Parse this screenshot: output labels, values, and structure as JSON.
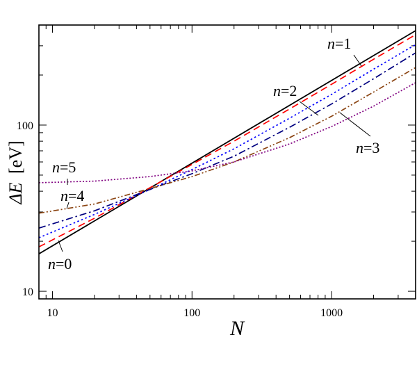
{
  "chart_data": {
    "type": "line",
    "xscale": "log",
    "yscale": "log",
    "xlim": [
      8,
      4000
    ],
    "ylim": [
      9,
      400
    ],
    "x_ticks": [
      10,
      100,
      1000
    ],
    "x_tick_labels": [
      "10",
      "100",
      "1000"
    ],
    "y_ticks": [
      10,
      100
    ],
    "y_tick_labels": [
      "10",
      "100"
    ],
    "xlabel": "N",
    "ylabel_symbol": "ΔE",
    "ylabel_unit": "[eV]",
    "grid": false,
    "series": [
      {
        "name": "n=0",
        "color": "#000000",
        "dash": "solid",
        "x": [
          8,
          4000
        ],
        "y": [
          16.8,
          370
        ]
      },
      {
        "name": "n=1",
        "color": "#ff0000",
        "dash": "dash",
        "x": [
          8,
          20,
          50,
          100,
          200,
          500,
          1000,
          2000,
          4000
        ],
        "y": [
          18.5,
          27.5,
          42,
          58,
          80,
          125,
          176,
          249,
          350
        ]
      },
      {
        "name": "n=2",
        "color": "#0000ff",
        "dash": "dot",
        "x": [
          8,
          20,
          50,
          100,
          200,
          500,
          1000,
          2000,
          4000
        ],
        "y": [
          21,
          29,
          41,
          54,
          72,
          110,
          153,
          217,
          305
        ]
      },
      {
        "name": "n=3",
        "color": "#000080",
        "dash": "dashdot",
        "x": [
          8,
          20,
          50,
          100,
          200,
          500,
          1000,
          2000,
          4000
        ],
        "y": [
          24,
          30.5,
          41,
          51,
          65,
          97,
          134,
          190,
          272
        ]
      },
      {
        "name": "n=4",
        "color": "#8b4513",
        "dash": "dashdotdot",
        "x": [
          8,
          20,
          50,
          100,
          200,
          500,
          1000,
          2000,
          4000
        ],
        "y": [
          29.5,
          33.5,
          41.5,
          49,
          60,
          84,
          113,
          158,
          222
        ]
      },
      {
        "name": "n=5",
        "color": "#800080",
        "dash": "shortdot",
        "x": [
          8,
          20,
          50,
          100,
          200,
          500,
          1000,
          2000,
          4000
        ],
        "y": [
          45,
          46,
          49,
          53,
          60,
          77,
          98,
          130,
          180
        ]
      }
    ],
    "annotations": [
      {
        "prefix": "n",
        "suffix": "=1",
        "series": "n=1"
      },
      {
        "prefix": "n",
        "suffix": "=2",
        "series": "n=2"
      },
      {
        "prefix": "n",
        "suffix": "=3",
        "series": "n=3"
      },
      {
        "prefix": "n",
        "suffix": "=5",
        "series": "n=5"
      },
      {
        "prefix": "n",
        "suffix": "=4",
        "series": "n=4"
      },
      {
        "prefix": "n",
        "suffix": "=0",
        "series": "n=0"
      }
    ]
  }
}
